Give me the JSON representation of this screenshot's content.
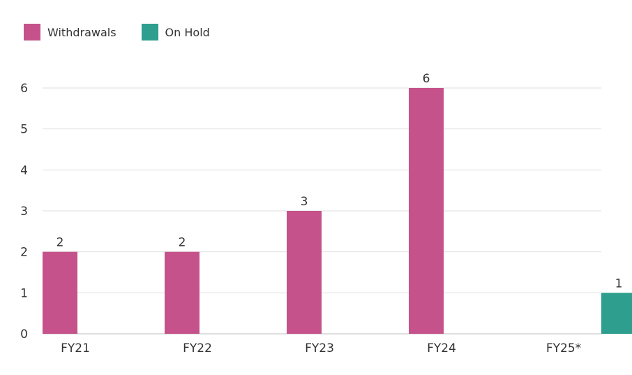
{
  "legend": {
    "items": [
      {
        "label": "Withdrawals",
        "color": "#c5528a"
      },
      {
        "label": "On Hold",
        "color": "#2e9e8f"
      }
    ]
  },
  "chart_data": {
    "type": "bar",
    "title": "",
    "xlabel": "",
    "ylabel": "",
    "ylim": [
      0,
      6
    ],
    "yticks": [
      0,
      1,
      2,
      3,
      4,
      5,
      6
    ],
    "grid": true,
    "legend_position": "top-left",
    "categories": [
      "FY21",
      "FY22",
      "FY23",
      "FY24",
      "FY25*"
    ],
    "series": [
      {
        "name": "Withdrawals",
        "color": "#c5528a",
        "values": [
          2,
          2,
          3,
          6,
          null
        ]
      },
      {
        "name": "On Hold",
        "color": "#2e9e8f",
        "values": [
          null,
          null,
          null,
          null,
          1
        ]
      }
    ]
  }
}
